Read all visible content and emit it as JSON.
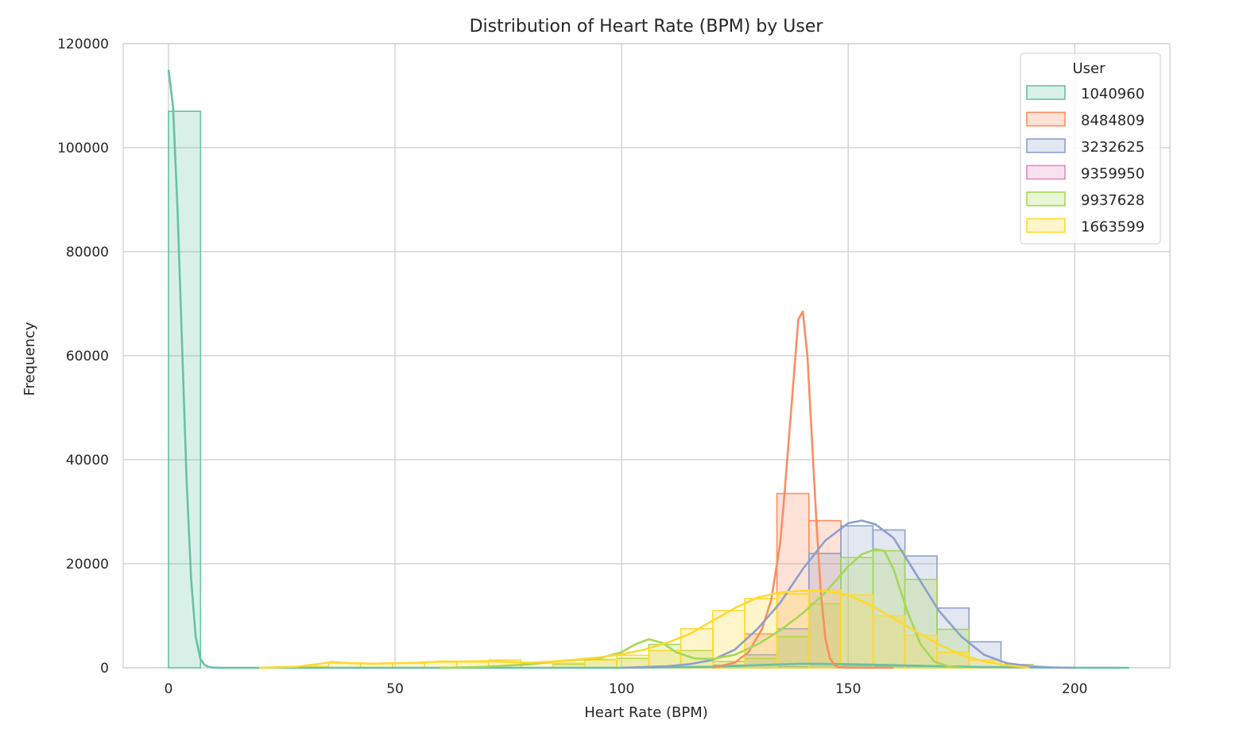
{
  "chart_data": {
    "type": "histogram",
    "title": "Distribution of Heart Rate (BPM) by User",
    "xlabel": "Heart Rate (BPM)",
    "ylabel": "Frequency",
    "xlim": [
      -10,
      221
    ],
    "ylim": [
      0,
      120000
    ],
    "x_ticks": [
      0,
      50,
      100,
      150,
      200
    ],
    "y_ticks": [
      0,
      20000,
      40000,
      60000,
      80000,
      100000,
      120000
    ],
    "grid": true,
    "legend": {
      "title": "User",
      "placement": "top-right"
    },
    "bin_edges": [
      0,
      7.07,
      14.13,
      21.2,
      28.27,
      35.33,
      42.4,
      49.47,
      56.53,
      63.6,
      70.67,
      77.73,
      84.8,
      91.87,
      98.93,
      106,
      113.07,
      120.13,
      127.2,
      134.27,
      141.33,
      148.4,
      155.47,
      162.53,
      169.6,
      176.67,
      183.73,
      190.8,
      197.87,
      204.93,
      212
    ],
    "series": [
      {
        "name": "1040960",
        "color": "#66c2a5",
        "counts": [
          107000,
          0,
          0,
          0,
          0,
          0,
          0,
          0,
          0,
          0,
          0,
          0,
          0,
          0,
          0,
          0,
          0,
          0,
          0,
          200,
          700,
          400,
          300,
          200,
          100,
          0,
          0,
          0,
          0,
          0
        ],
        "kde_x": [
          0,
          1,
          2,
          3,
          4,
          5,
          6,
          7,
          8,
          9,
          10,
          12,
          15,
          20,
          40,
          60,
          80,
          100,
          120,
          130,
          140,
          150,
          160,
          170,
          180,
          190,
          200,
          212
        ],
        "kde_y": [
          115000,
          108000,
          88000,
          62000,
          36000,
          17000,
          6000,
          1800,
          500,
          150,
          40,
          0,
          0,
          0,
          0,
          0,
          0,
          0,
          200,
          500,
          800,
          700,
          500,
          300,
          150,
          60,
          20,
          0
        ]
      },
      {
        "name": "8484809",
        "color": "#fc8d62",
        "counts": [
          0,
          0,
          0,
          0,
          0,
          0,
          0,
          0,
          0,
          0,
          0,
          0,
          0,
          0,
          0,
          0,
          0,
          500,
          6500,
          33500,
          28300,
          0,
          0,
          0,
          0,
          0,
          0,
          0,
          0,
          0
        ],
        "kde_x": [
          120,
          125,
          128,
          131,
          133,
          135,
          136,
          137,
          138,
          139,
          140,
          141,
          142,
          143,
          144,
          145,
          146,
          147,
          148,
          150,
          155,
          160
        ],
        "kde_y": [
          0,
          1000,
          3000,
          7500,
          13000,
          24000,
          34000,
          45000,
          56000,
          67000,
          68500,
          60000,
          44000,
          28000,
          14000,
          5500,
          1800,
          500,
          100,
          0,
          0,
          0
        ]
      },
      {
        "name": "3232625",
        "color": "#8da0cb",
        "counts": [
          0,
          0,
          0,
          0,
          0,
          0,
          0,
          0,
          0,
          0,
          0,
          0,
          0,
          0,
          0,
          0,
          0,
          500,
          2500,
          7500,
          22000,
          27300,
          26500,
          21500,
          11500,
          5000,
          600,
          0,
          0,
          0
        ],
        "kde_x": [
          100,
          110,
          115,
          120,
          125,
          130,
          135,
          140,
          145,
          150,
          153,
          156,
          160,
          165,
          170,
          175,
          180,
          185,
          190,
          195,
          200
        ],
        "kde_y": [
          0,
          300,
          700,
          1500,
          3500,
          7500,
          12500,
          19000,
          24500,
          27800,
          28300,
          27600,
          25000,
          18000,
          11000,
          6000,
          2500,
          900,
          300,
          80,
          0
        ]
      },
      {
        "name": "9359950",
        "color": "#e78ac3",
        "counts": [
          0,
          0,
          0,
          0,
          0,
          0,
          0,
          0,
          0,
          0,
          0,
          0,
          0,
          0,
          0,
          0,
          0,
          0,
          0,
          0,
          0,
          0,
          0,
          0,
          0,
          0,
          0,
          0,
          0,
          0
        ],
        "kde_x": [],
        "kde_y": []
      },
      {
        "name": "9937628",
        "color": "#a6d854",
        "counts": [
          0,
          0,
          0,
          0,
          0,
          0,
          0,
          0,
          0,
          0,
          0,
          0,
          700,
          1600,
          1800,
          4500,
          3300,
          1200,
          1800,
          6000,
          12300,
          21200,
          22500,
          17000,
          7400,
          0,
          0,
          0,
          0,
          0
        ],
        "kde_x": [
          60,
          70,
          80,
          85,
          90,
          95,
          100,
          103,
          106,
          109,
          112,
          116,
          120,
          125,
          130,
          135,
          140,
          145,
          150,
          153,
          156,
          158,
          160,
          163,
          166,
          169,
          172,
          175
        ],
        "kde_y": [
          0,
          200,
          700,
          1200,
          1500,
          1800,
          3000,
          4500,
          5500,
          4800,
          3000,
          1800,
          1700,
          2500,
          4500,
          7200,
          10500,
          14500,
          19500,
          21800,
          22800,
          22500,
          19000,
          11000,
          4500,
          1200,
          300,
          0
        ]
      },
      {
        "name": "1663599",
        "color": "#ffd92f",
        "counts": [
          0,
          0,
          0,
          0,
          300,
          900,
          800,
          900,
          1100,
          1100,
          1500,
          900,
          900,
          1500,
          2400,
          3300,
          7500,
          11000,
          13300,
          14200,
          15000,
          14000,
          10000,
          6200,
          3000,
          1500,
          500,
          0,
          0,
          0
        ],
        "kde_x": [
          20,
          28,
          33,
          36,
          40,
          45,
          50,
          55,
          60,
          65,
          70,
          75,
          80,
          85,
          90,
          95,
          100,
          105,
          110,
          115,
          120,
          125,
          130,
          135,
          140,
          145,
          150,
          155,
          160,
          165,
          170,
          175,
          180,
          185,
          190
        ],
        "kde_y": [
          0,
          200,
          700,
          1100,
          900,
          800,
          900,
          1000,
          1200,
          1200,
          1300,
          1100,
          1000,
          1200,
          1600,
          2000,
          2600,
          3500,
          4800,
          6500,
          9000,
          11500,
          13500,
          14500,
          14800,
          14800,
          14000,
          12000,
          9500,
          7000,
          4500,
          2500,
          1200,
          500,
          0
        ]
      }
    ]
  }
}
